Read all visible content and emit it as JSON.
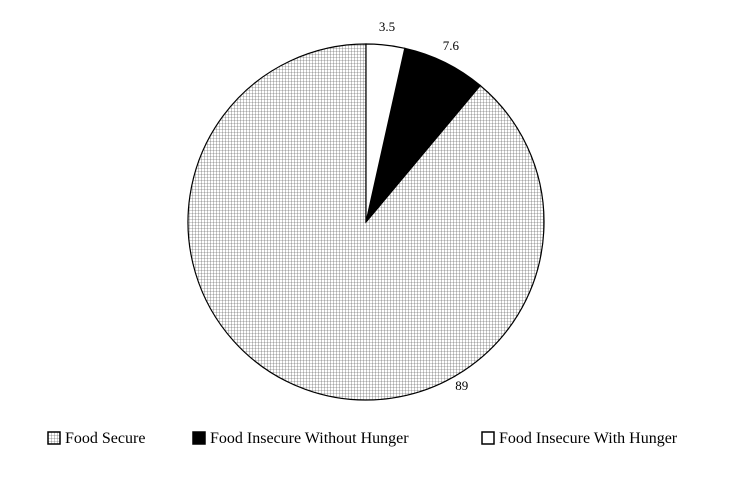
{
  "chart_data": {
    "type": "pie",
    "categories": [
      "Food Secure",
      "Food Insecure Without Hunger",
      "Food Insecure With Hunger"
    ],
    "values": [
      89,
      7.6,
      3.5
    ],
    "data_labels": [
      "89",
      "7.6",
      "3.5"
    ],
    "legend": {
      "placement": "bottom",
      "entries": [
        {
          "label": "Food Secure",
          "pattern": "grid"
        },
        {
          "label": "Food Insecure Without Hunger",
          "color": "#000000"
        },
        {
          "label": "Food Insecure With Hunger",
          "color": "#ffffff"
        }
      ]
    },
    "start_angle": "12 o'clock",
    "direction": "counterclockwise"
  }
}
